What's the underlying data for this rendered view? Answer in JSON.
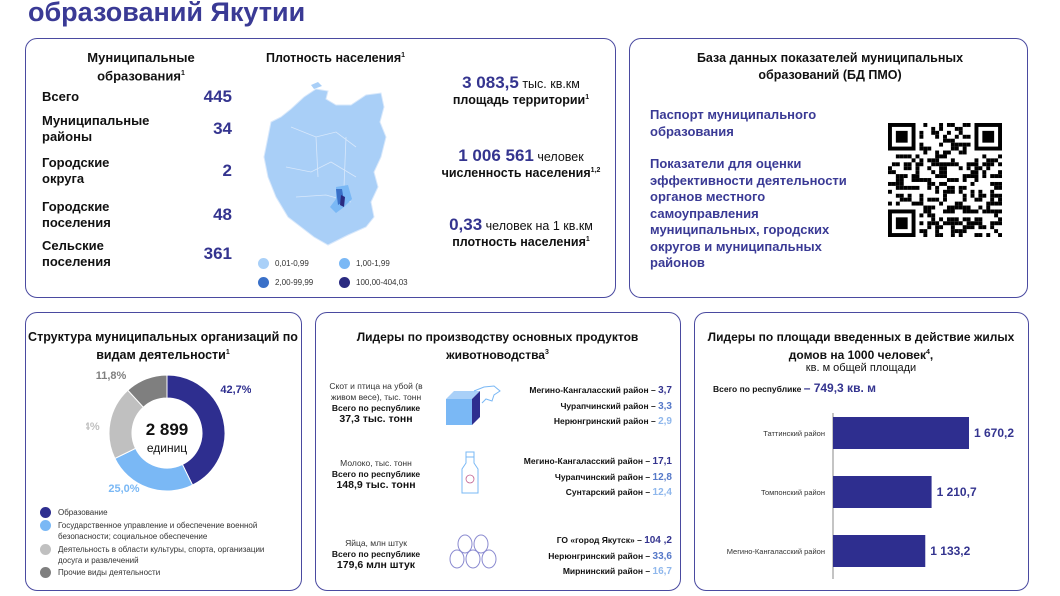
{
  "page_title": "образований Якутии",
  "colors": {
    "accent": "#34348f",
    "light_blue": "#7ab8f5",
    "mid_blue": "#3a70c8",
    "gray_light": "#c0c0c0",
    "gray_dark": "#7f7f7f",
    "map_base": "#9ec8f7"
  },
  "municipal": {
    "heading": "Муниципальные образования",
    "sup": "1",
    "rows": [
      {
        "label": "Всего",
        "value": "445"
      },
      {
        "label": "Муниципальные районы",
        "value": "34"
      },
      {
        "label": "Городские округа",
        "value": "2"
      },
      {
        "label": "Городские поселения",
        "value": "48"
      },
      {
        "label": "Сельские поселения",
        "value": "361"
      }
    ]
  },
  "map": {
    "heading": "Плотность населения",
    "sup": "1",
    "legend": [
      {
        "label": "0,01-0,99",
        "color": "#a9d0f8"
      },
      {
        "label": "1,00-1,99",
        "color": "#7ab8f5"
      },
      {
        "label": "2,00-99,99",
        "color": "#3a70c8"
      },
      {
        "label": "100,00-404,03",
        "color": "#2a2a80"
      }
    ]
  },
  "stats": [
    {
      "value": "3 083,5",
      "unit": " тыс. кв.км",
      "label": "площадь территории",
      "sup": "1"
    },
    {
      "value": "1 006 561",
      "unit": " человек",
      "label": "численность населения",
      "sup": "1,2"
    },
    {
      "value": "0,33",
      "unit": " человек на 1 кв.км",
      "label": "плотность населения",
      "sup": "1"
    }
  ],
  "db": {
    "heading": "База данных показателей муниципальных образований (БД ПМО)",
    "links": [
      "Паспорт муниципального образования",
      "Показатели для оценки эффективности деятельности органов местного самоуправления муниципальных, городских округов и муниципальных районов"
    ],
    "qr_icon": "qr-code"
  },
  "structure": {
    "heading": "Структура муниципальных организаций по видам деятельности",
    "sup": "1",
    "center_value": "2 899",
    "center_unit": "единиц"
  },
  "chart_data": [
    {
      "type": "pie",
      "title": "Структура муниципальных организаций по видам деятельности",
      "slices": [
        {
          "name": "Образование",
          "value": 42.7,
          "label": "42,7%",
          "color": "#2e2e8f"
        },
        {
          "name": "Государственное управление и обеспечение военной безопасности; социальное обеспечение",
          "value": 25.0,
          "label": "25,0%",
          "color": "#7ab8f5"
        },
        {
          "name": "Деятельность в области культуры, спорта, организации досуга и развлечений",
          "value": 20.4,
          "label": "20,4%",
          "color": "#c0c0c0"
        },
        {
          "name": "Прочие виды деятельности",
          "value": 11.8,
          "label": "11,8%",
          "color": "#7f7f7f"
        }
      ],
      "legend": "bottom"
    },
    {
      "type": "bar",
      "orientation": "horizontal",
      "title": "Лидеры по площади введенных в действие жилых домов на 1000 человек",
      "categories": [
        "Таттинский район",
        "Томпонский район",
        "Мегино-Кангаласский район"
      ],
      "values": [
        1670.2,
        1210.7,
        1133.2
      ],
      "value_labels": [
        "1 670,2",
        "1 210,7",
        "1 133,2"
      ],
      "color": "#2e2e8f",
      "xlim": [
        0,
        1670.2
      ]
    }
  ],
  "livestock": {
    "heading": "Лидеры по производству  основных продуктов животноводства",
    "sup": "3",
    "items": [
      {
        "label": "Скот и птица на убой (в живом весе), тыс. тонн",
        "total_label": "Всего по республике",
        "total": "37,3 тыс. тонн",
        "icon": "meat-cube-cow",
        "leaders": [
          {
            "name": "Мегино-Кангаласский район – ",
            "value": "3,7"
          },
          {
            "name": "Чурапчинский район – ",
            "value": "3,3"
          },
          {
            "name": "Нерюнгринский район – ",
            "value": "2,9"
          }
        ]
      },
      {
        "label": "Молоко, тыс. тонн",
        "total_label": "Всего по республике",
        "total": "148,9 тыс. тонн",
        "icon": "milk-bottle",
        "leaders": [
          {
            "name": "Мегино-Кангаласский район – ",
            "value": "17,1"
          },
          {
            "name": "Чурапчинский район – ",
            "value": "12,8"
          },
          {
            "name": "Сунтарский район – ",
            "value": "12,4"
          }
        ]
      },
      {
        "label": "Яйца, млн штук",
        "total_label": "Всего по республике",
        "total": "179,6 млн штук",
        "icon": "eggs",
        "leaders": [
          {
            "name": "ГО «город Якутск» – ",
            "value": "104 ,2"
          },
          {
            "name": "Нерюнгринский район – ",
            "value": "33,6"
          },
          {
            "name": "Мирнинский район – ",
            "value": "16,7"
          }
        ]
      }
    ]
  },
  "housing": {
    "heading": "Лидеры по площади введенных в действие жилых домов на 1000 человек",
    "sup": "4",
    "subheading": "кв. м общей площади",
    "total_label": "Всего по республике",
    "total_value": "– 749,3 кв. м"
  }
}
